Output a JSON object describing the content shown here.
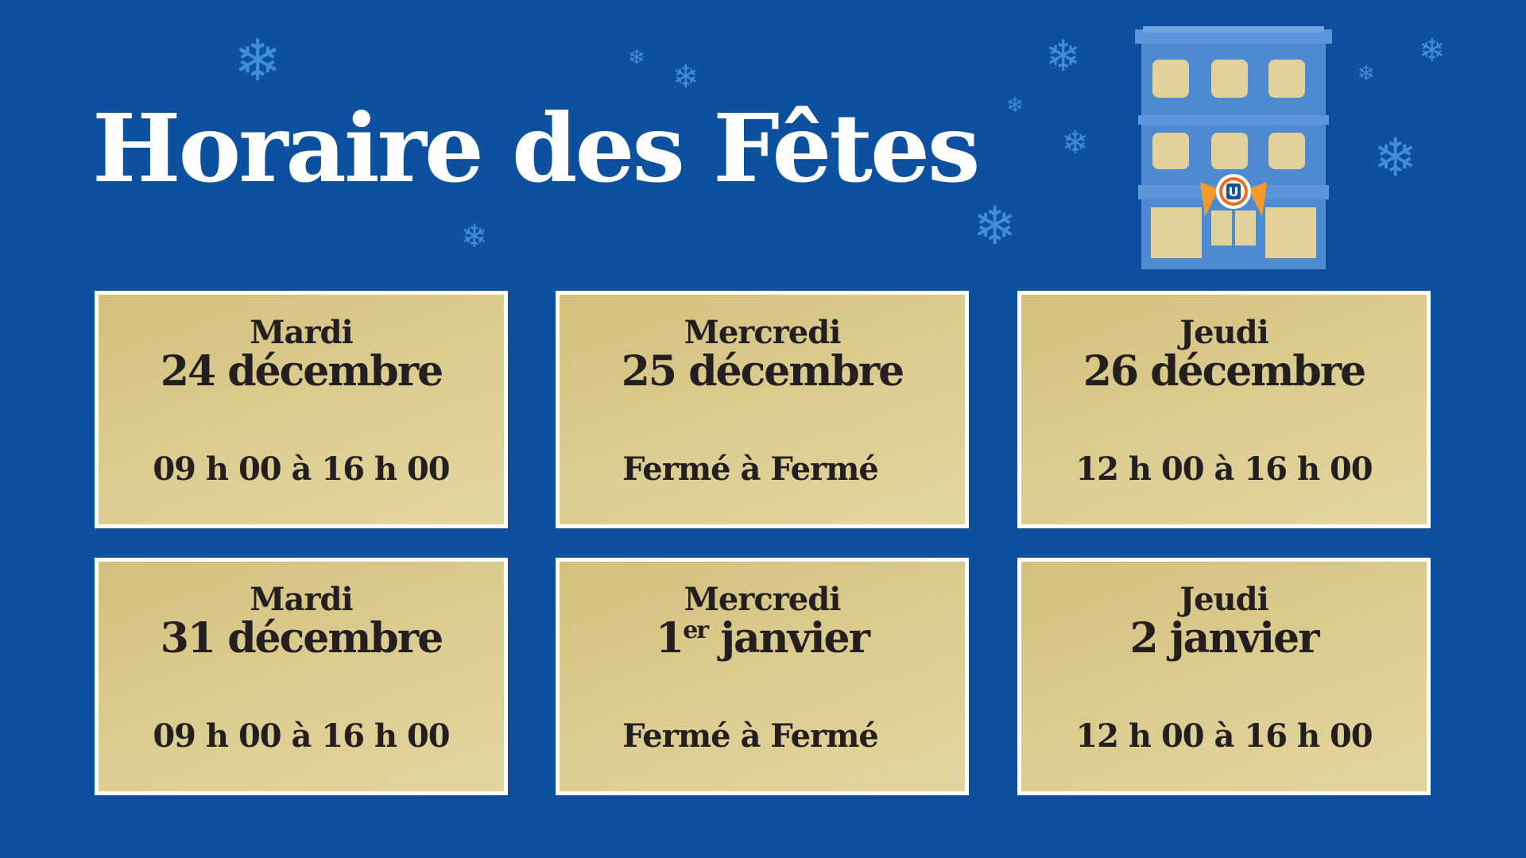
{
  "title": "Horaire des Fêtes",
  "brand_colors": {
    "background": "#0e50a0",
    "card": "#dccd92",
    "text": "#231f20",
    "snowflake": "#3f8fd6"
  },
  "logo_letter": "U",
  "schedule": [
    {
      "day": "Mardi",
      "date": "24 décembre",
      "hours": "09 h 00 à 16 h 00"
    },
    {
      "day": "Mercredi",
      "date": "25 décembre",
      "hours": "Fermé à Fermé"
    },
    {
      "day": "Jeudi",
      "date": "26 décembre",
      "hours": "12 h 00 à 16 h 00"
    },
    {
      "day": "Mardi",
      "date": "31 décembre",
      "hours": "09 h 00 à 16 h 00"
    },
    {
      "day": "Mercredi",
      "date_num": "1",
      "date_sup": "er",
      "date_rest": " janvier",
      "hours": "Fermé à Fermé"
    },
    {
      "day": "Jeudi",
      "date": "2 janvier",
      "hours": "12 h 00 à 16 h 00"
    }
  ]
}
